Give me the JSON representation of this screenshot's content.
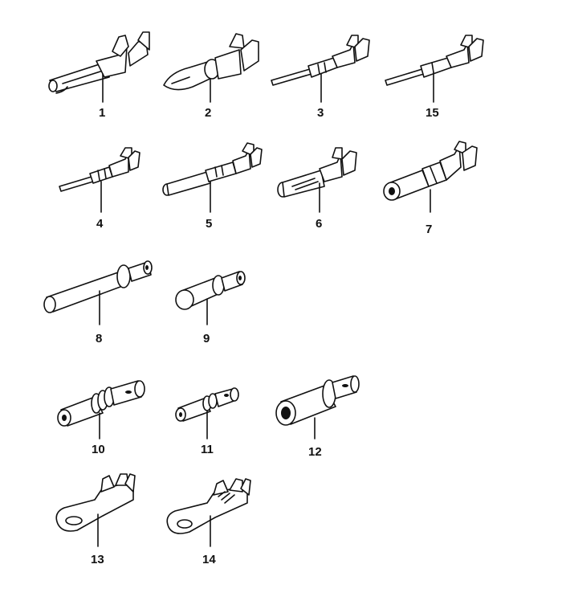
{
  "parts": [
    {
      "id": "1",
      "label": "1",
      "kind": "male-crimp-terminal"
    },
    {
      "id": "2",
      "label": "2",
      "kind": "bullet-crimp-terminal"
    },
    {
      "id": "3",
      "label": "3",
      "kind": "thin-pin-crimp-terminal"
    },
    {
      "id": "15",
      "label": "15",
      "kind": "thin-pin-crimp-terminal"
    },
    {
      "id": "4",
      "label": "4",
      "kind": "small-pin-crimp-terminal"
    },
    {
      "id": "5",
      "label": "5",
      "kind": "socket-crimp-terminal"
    },
    {
      "id": "6",
      "label": "6",
      "kind": "open-socket-crimp-terminal"
    },
    {
      "id": "7",
      "label": "7",
      "kind": "sleeve-crimp-terminal"
    },
    {
      "id": "8",
      "label": "8",
      "kind": "long-round-pin"
    },
    {
      "id": "9",
      "label": "9",
      "kind": "short-round-pin"
    },
    {
      "id": "10",
      "label": "10",
      "kind": "ribbed-socket"
    },
    {
      "id": "11",
      "label": "11",
      "kind": "small-ribbed-socket"
    },
    {
      "id": "12",
      "label": "12",
      "kind": "large-sleeve-socket"
    },
    {
      "id": "13",
      "label": "13",
      "kind": "ring-terminal"
    },
    {
      "id": "14",
      "label": "14",
      "kind": "ring-terminal"
    }
  ]
}
